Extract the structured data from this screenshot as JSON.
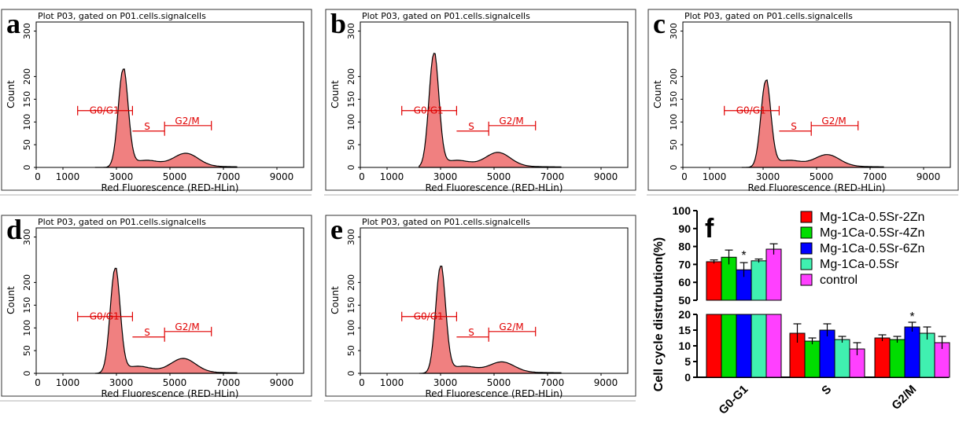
{
  "histograms": [
    {
      "letter": "a",
      "title": "Plot P03, gated on P01.cells.signalcells",
      "ylabel": "Count",
      "xlabel": "Red Fluorescence (RED-HLin)",
      "yticks": [
        "0",
        "50",
        "100",
        "150",
        "200",
        "300"
      ],
      "xticks": [
        "0",
        "1000",
        "3000",
        "5000",
        "7000",
        "9000"
      ],
      "gates": [
        "G0/G1",
        "S",
        "G2/M"
      ]
    },
    {
      "letter": "b",
      "title": "Plot P03, gated on P01.cells.signalcells",
      "ylabel": "Count",
      "xlabel": "Red Fluorescence (RED-HLin)",
      "yticks": [
        "0",
        "50",
        "100",
        "150",
        "200",
        "300"
      ],
      "xticks": [
        "0",
        "1000",
        "3000",
        "5000",
        "7000",
        "9000"
      ],
      "gates": [
        "G0/G1",
        "S",
        "G2/M"
      ]
    },
    {
      "letter": "c",
      "title": "Plot P03, gated on P01.cells.signalcells",
      "ylabel": "Count",
      "xlabel": "Red Fluorescence (RED-HLin)",
      "yticks": [
        "0",
        "50",
        "100",
        "150",
        "200",
        "300"
      ],
      "xticks": [
        "0",
        "1000",
        "3000",
        "5000",
        "7000",
        "9000"
      ],
      "gates": [
        "G0/G1",
        "S",
        "G2/M"
      ]
    },
    {
      "letter": "d",
      "title": "Plot P03, gated on P01.cells.signalcells",
      "ylabel": "Count",
      "xlabel": "Red Fluorescence (RED-HLin)",
      "yticks": [
        "0",
        "50",
        "100",
        "150",
        "200",
        "300"
      ],
      "xticks": [
        "0",
        "1000",
        "3000",
        "5000",
        "7000",
        "9000"
      ],
      "gates": [
        "G0/G1",
        "S",
        "G2/M"
      ]
    },
    {
      "letter": "e",
      "title": "Plot P03, gated on P01.cells.signalcells",
      "ylabel": "Count",
      "xlabel": "Red Fluorescence (RED-HLin)",
      "yticks": [
        "0",
        "50",
        "100",
        "150",
        "200",
        "300"
      ],
      "xticks": [
        "0",
        "1000",
        "3000",
        "5000",
        "7000",
        "9000"
      ],
      "gates": [
        "G0/G1",
        "S",
        "G2/M"
      ]
    }
  ],
  "chart_data": {
    "type": "bar",
    "panel_label": "f",
    "ylabel": "Cell cycle distrubution(%)",
    "categories": [
      "G0-G1",
      "S",
      "G2/M"
    ],
    "upper_ticks": [
      "50",
      "60",
      "70",
      "80",
      "90",
      "100"
    ],
    "lower_ticks": [
      "0",
      "5",
      "10",
      "15",
      "20"
    ],
    "series": [
      {
        "name": "Mg-1Ca-0.5Sr-2Zn",
        "color": "#ff0000",
        "values": [
          71.5,
          14,
          12.5
        ],
        "errors": [
          1,
          3,
          1
        ]
      },
      {
        "name": "Mg-1Ca-0.5Sr-4Zn",
        "color": "#00dd00",
        "values": [
          74,
          11.5,
          12
        ],
        "errors": [
          4,
          1,
          1
        ]
      },
      {
        "name": "Mg-1Ca-0.5Sr-6Zn",
        "color": "#0000ff",
        "values": [
          67,
          15,
          16
        ],
        "errors": [
          4,
          2,
          1.5
        ]
      },
      {
        "name": "Mg-1Ca-0.5Sr",
        "color": "#40f0b0",
        "values": [
          72,
          12,
          14
        ],
        "errors": [
          1,
          1,
          2
        ]
      },
      {
        "name": "control",
        "color": "#ff40ff",
        "values": [
          78.5,
          9,
          11
        ],
        "errors": [
          3,
          2,
          2
        ]
      }
    ],
    "significance": [
      "*",
      "*"
    ]
  }
}
